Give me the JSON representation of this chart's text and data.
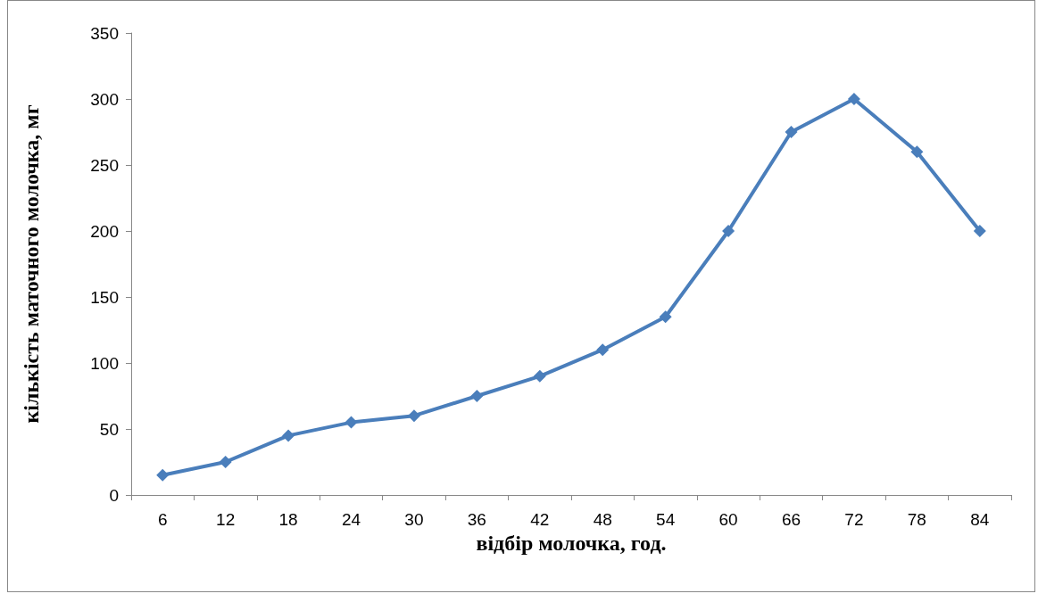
{
  "chart_data": {
    "type": "line",
    "xlabel": "відбір молочка, год.",
    "ylabel": "кількість маточного молочка, мг",
    "categories": [
      "6",
      "12",
      "18",
      "24",
      "30",
      "36",
      "42",
      "48",
      "54",
      "60",
      "66",
      "72",
      "78",
      "84"
    ],
    "series": [
      {
        "color": "#4a7ebb",
        "values": [
          15,
          25,
          45,
          55,
          60,
          75,
          90,
          110,
          135,
          200,
          275,
          300,
          260,
          200
        ]
      }
    ],
    "ylim": [
      0,
      350
    ],
    "yticks": [
      0,
      50,
      100,
      150,
      200,
      250,
      300,
      350
    ],
    "marker": "diamond",
    "line_style": "solid"
  }
}
